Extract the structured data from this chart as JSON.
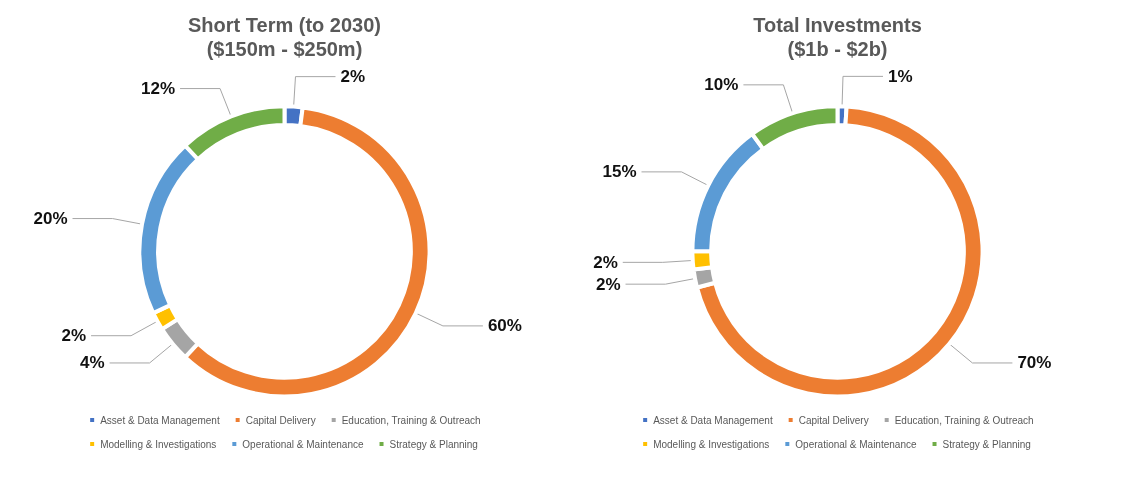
{
  "chart_data": [
    {
      "type": "donut",
      "title": "Short Term (to 2030)",
      "subtitle": "($150m - $250m)",
      "categories": [
        "Asset & Data Management",
        "Capital Delivery",
        "Education, Training & Outreach",
        "Modelling & Investigations",
        "Operational & Maintenance",
        "Strategy & Planning"
      ],
      "values": [
        2,
        60,
        4,
        2,
        20,
        12
      ],
      "value_labels": [
        "2%",
        "60%",
        "4%",
        "2%",
        "20%",
        "12%"
      ],
      "colors": [
        "#4472c4",
        "#ed7d31",
        "#a5a5a5",
        "#ffc000",
        "#5b9bd5",
        "#70ad47"
      ],
      "legend": "bottom"
    },
    {
      "type": "donut",
      "title": "Total Investments",
      "subtitle": "($1b - $2b)",
      "categories": [
        "Asset & Data Management",
        "Capital Delivery",
        "Education, Training & Outreach",
        "Modelling & Investigations",
        "Operational & Maintenance",
        "Strategy & Planning"
      ],
      "values": [
        1,
        70,
        2,
        2,
        15,
        10
      ],
      "value_labels": [
        "1%",
        "70%",
        "2%",
        "2%",
        "15%",
        "10%"
      ],
      "colors": [
        "#4472c4",
        "#ed7d31",
        "#a5a5a5",
        "#ffc000",
        "#5b9bd5",
        "#70ad47"
      ],
      "legend": "bottom"
    }
  ]
}
